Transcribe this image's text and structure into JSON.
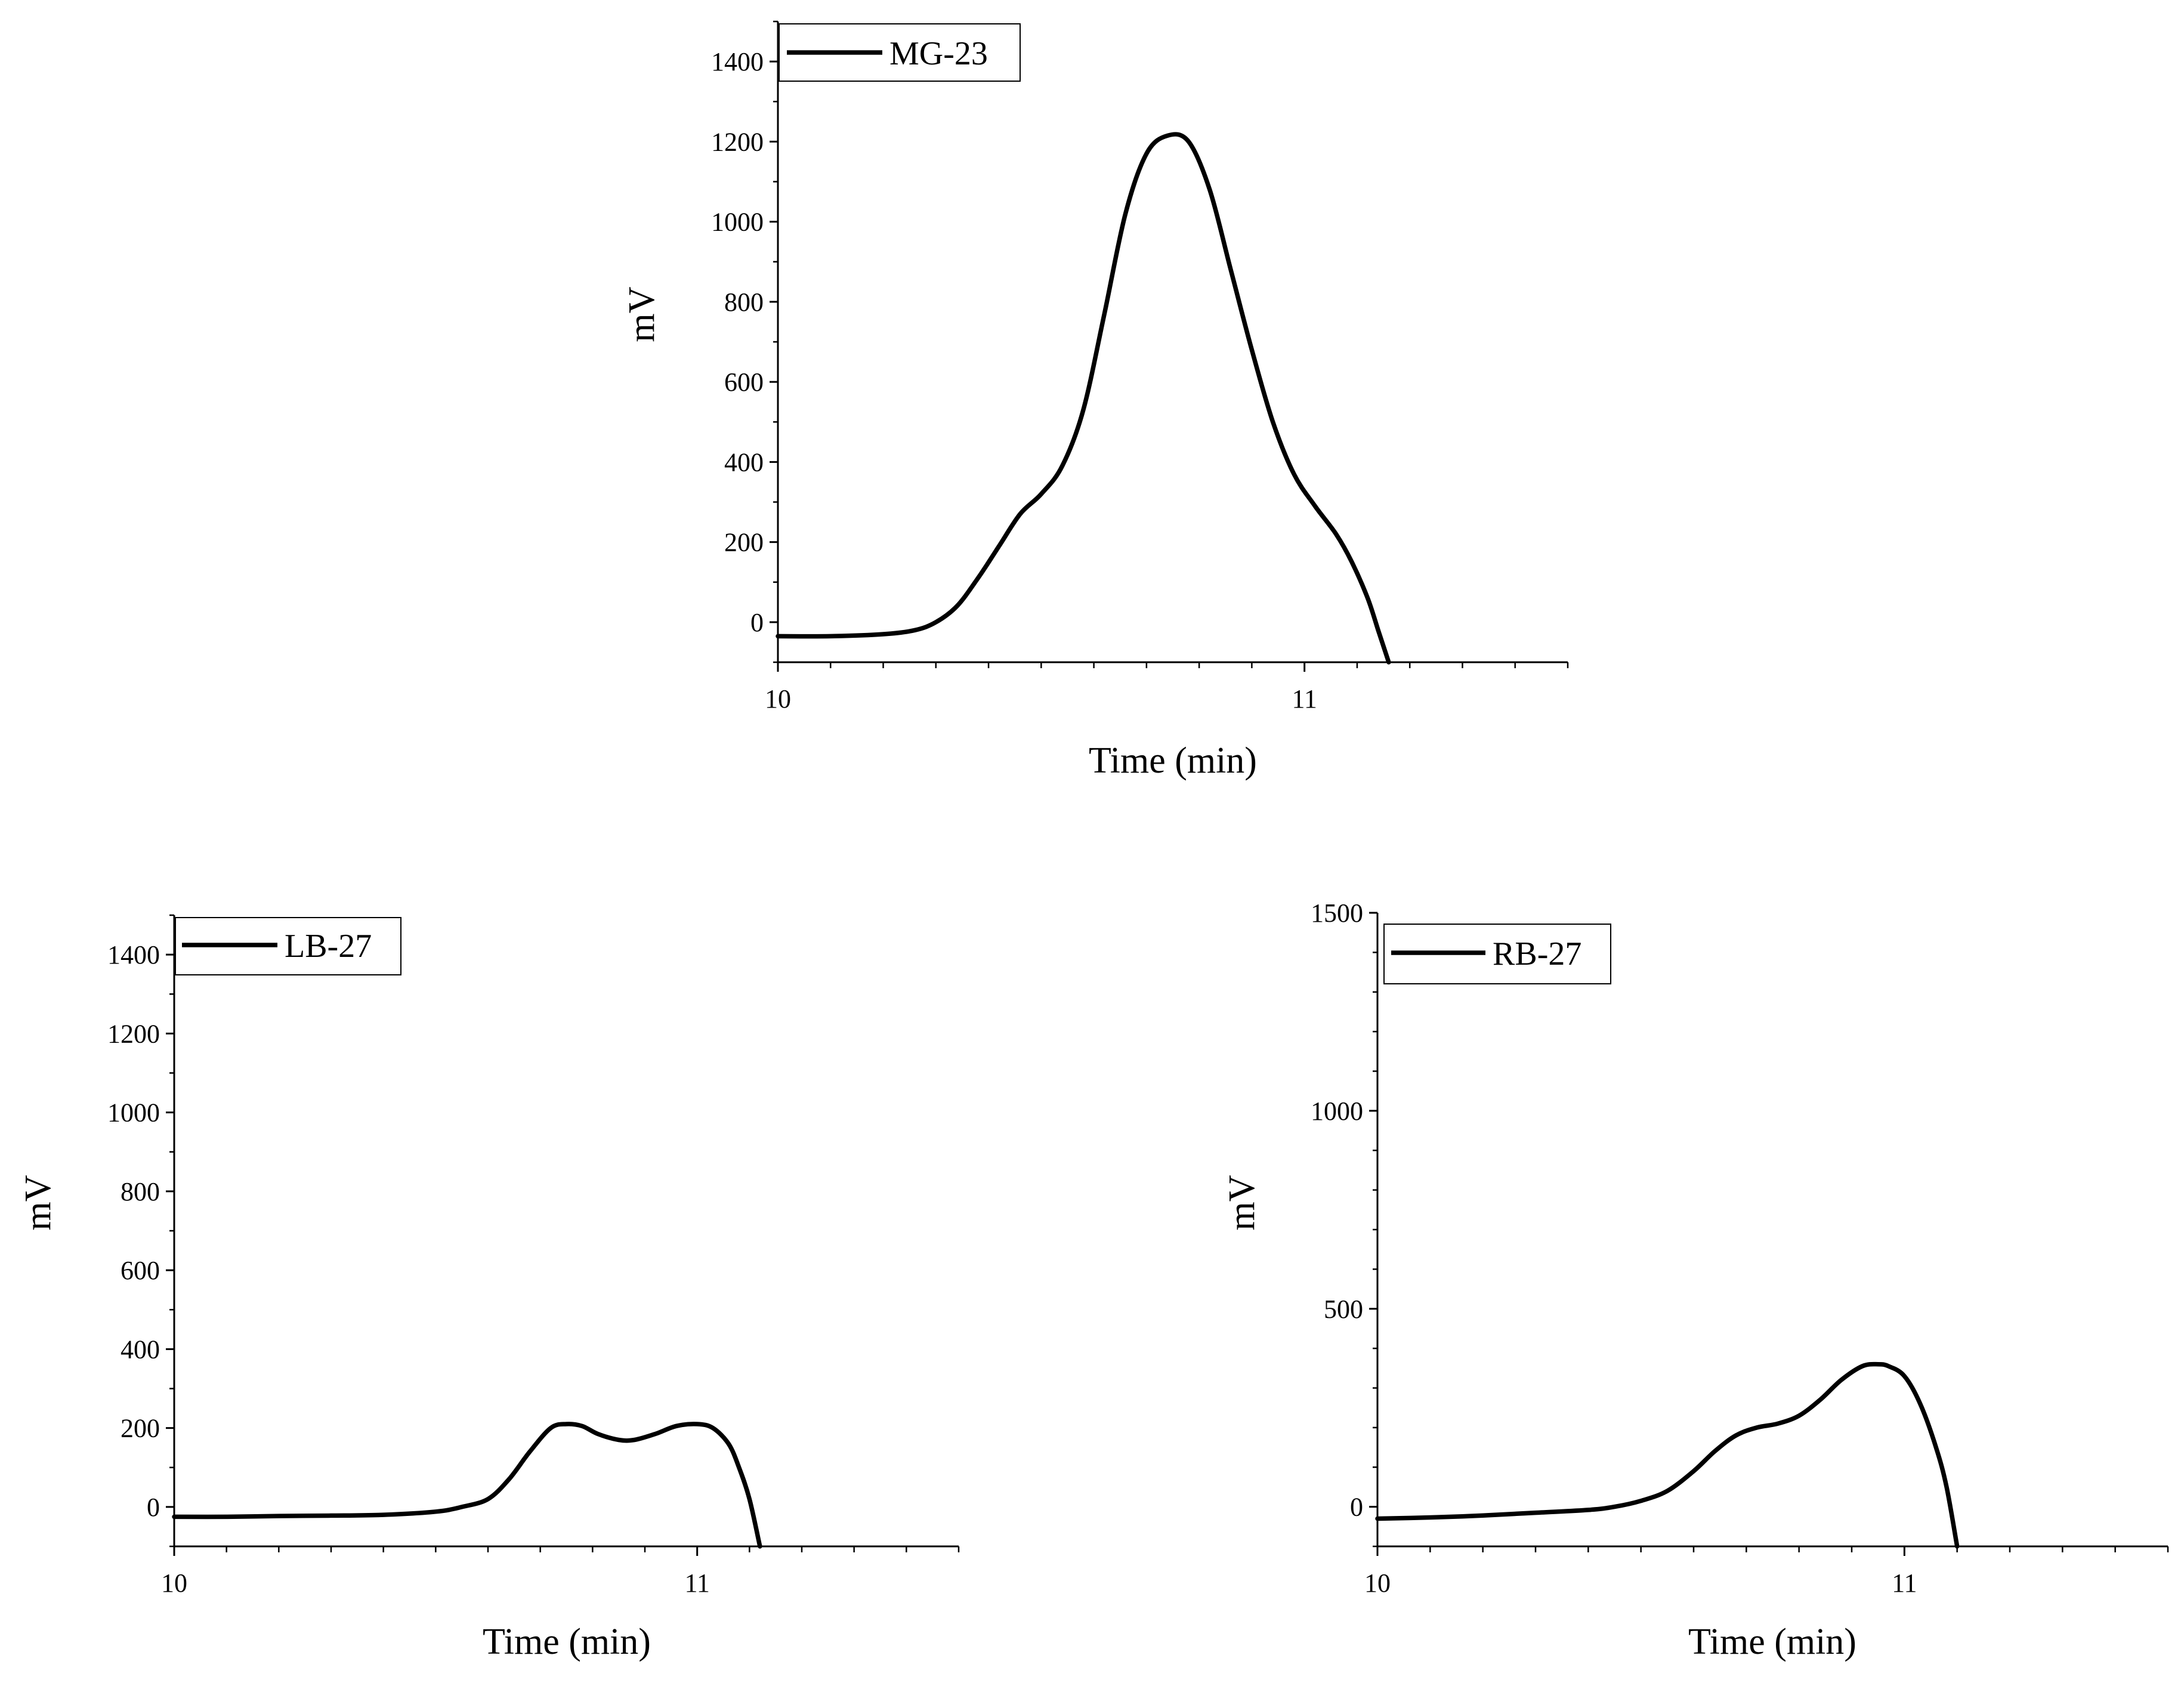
{
  "chart_data": [
    {
      "type": "line",
      "id": "mg",
      "title": "",
      "xlabel": "Time (min)",
      "ylabel": "mV",
      "xlim": [
        10,
        11.5
      ],
      "ylim": [
        -100,
        1500
      ],
      "xticks": [
        10,
        11
      ],
      "xminor": [
        10.1,
        10.2,
        10.3,
        10.4,
        10.5,
        10.6,
        10.7,
        10.8,
        10.9,
        11.1,
        11.2,
        11.3,
        11.4,
        11.5
      ],
      "yticks": [
        0,
        200,
        400,
        600,
        800,
        1000,
        1200,
        1400
      ],
      "ytick_labels": [
        "0",
        "200",
        "400",
        "600",
        "800",
        "1000",
        "1200",
        "1400"
      ],
      "yminor": [
        -100,
        100,
        300,
        500,
        700,
        900,
        1100,
        1300,
        1500
      ],
      "legend": "top-left",
      "series": [
        {
          "name": "MG-23",
          "color": "#000000",
          "x": [
            10.0,
            10.1,
            10.2,
            10.26,
            10.3,
            10.34,
            10.38,
            10.42,
            10.46,
            10.5,
            10.54,
            10.58,
            10.62,
            10.66,
            10.7,
            10.74,
            10.78,
            10.82,
            10.86,
            10.9,
            10.94,
            10.98,
            11.02,
            11.06,
            11.09,
            11.12,
            11.14,
            11.16
          ],
          "values": [
            -35,
            -35,
            -30,
            -20,
            0,
            40,
            110,
            190,
            270,
            320,
            390,
            530,
            770,
            1020,
            1170,
            1215,
            1200,
            1080,
            880,
            680,
            500,
            370,
            290,
            220,
            150,
            60,
            -20,
            -100
          ]
        }
      ]
    },
    {
      "type": "line",
      "id": "lb",
      "title": "",
      "xlabel": "Time (min)",
      "ylabel": "mV",
      "xlim": [
        10,
        11.5
      ],
      "ylim": [
        -100,
        1500
      ],
      "xticks": [
        10,
        11
      ],
      "xminor": [
        10.1,
        10.2,
        10.3,
        10.4,
        10.5,
        10.6,
        10.7,
        10.8,
        10.9,
        11.1,
        11.2,
        11.3,
        11.4,
        11.5
      ],
      "yticks": [
        0,
        200,
        400,
        600,
        800,
        1000,
        1200,
        1400
      ],
      "ytick_labels": [
        "0",
        "200",
        "400",
        "600",
        "800",
        "1000",
        "1200",
        "1400"
      ],
      "yminor": [
        -100,
        100,
        300,
        500,
        700,
        900,
        1100,
        1300,
        1500
      ],
      "legend": "top-left",
      "series": [
        {
          "name": "LB-27",
          "color": "#000000",
          "x": [
            10.0,
            10.1,
            10.2,
            10.3,
            10.4,
            10.5,
            10.55,
            10.6,
            10.64,
            10.68,
            10.72,
            10.75,
            10.78,
            10.81,
            10.85,
            10.88,
            10.92,
            10.96,
            11.0,
            11.03,
            11.06,
            11.08,
            11.1,
            11.12
          ],
          "values": [
            -25,
            -25,
            -23,
            -22,
            -20,
            -12,
            0,
            20,
            70,
            140,
            200,
            210,
            205,
            185,
            170,
            170,
            185,
            205,
            210,
            200,
            160,
            100,
            20,
            -100
          ]
        }
      ]
    },
    {
      "type": "line",
      "id": "rb",
      "title": "",
      "xlabel": "Time (min)",
      "ylabel": "mV",
      "xlim": [
        10,
        11.5
      ],
      "ylim": [
        -100,
        1500
      ],
      "xticks": [
        10,
        11
      ],
      "xminor": [
        10.1,
        10.2,
        10.3,
        10.4,
        10.5,
        10.6,
        10.7,
        10.8,
        10.9,
        11.1,
        11.2,
        11.3,
        11.4,
        11.5
      ],
      "yticks": [
        0,
        500,
        1000,
        1500
      ],
      "ytick_labels": [
        "0",
        "500",
        "1000",
        "1500"
      ],
      "yminor": [
        -100,
        100,
        200,
        300,
        400,
        600,
        700,
        800,
        900,
        1100,
        1200,
        1300,
        1400
      ],
      "legend": "top-left",
      "series": [
        {
          "name": "RB-27",
          "color": "#000000",
          "x": [
            10.0,
            10.1,
            10.2,
            10.3,
            10.4,
            10.45,
            10.5,
            10.55,
            10.6,
            10.64,
            10.68,
            10.72,
            10.76,
            10.8,
            10.84,
            10.88,
            10.92,
            10.95,
            10.97,
            11.0,
            11.03,
            11.06,
            11.08,
            11.1
          ],
          "values": [
            -30,
            -27,
            -22,
            -15,
            -8,
            0,
            15,
            40,
            90,
            140,
            180,
            200,
            210,
            230,
            270,
            320,
            355,
            360,
            355,
            330,
            260,
            150,
            50,
            -100
          ]
        }
      ]
    }
  ]
}
